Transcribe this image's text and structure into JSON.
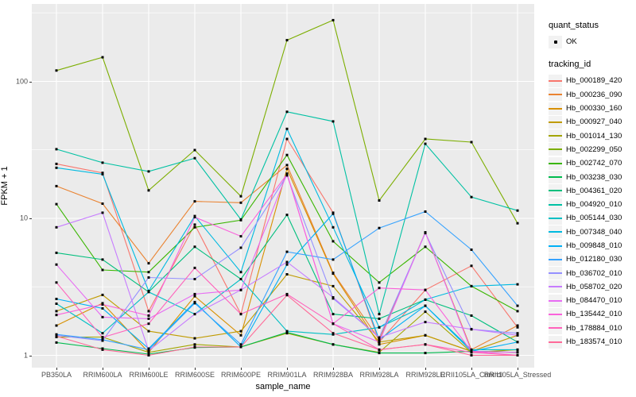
{
  "figure": {
    "x_axis_title": "sample_name",
    "y_axis_title": "FPKM + 1"
  },
  "legend": {
    "quant_status": {
      "title": "quant_status",
      "items": [
        {
          "label": "OK",
          "marker": "point-icon",
          "color": "#000000"
        }
      ]
    },
    "tracking_id": {
      "title": "tracking_id"
    }
  },
  "chart_data": {
    "type": "line",
    "title": "",
    "xlabel": "sample_name",
    "ylabel": "FPKM + 1",
    "y_scale": "log10",
    "ylim": [
      1,
      400
    ],
    "y_major_ticks": [
      1,
      10,
      100
    ],
    "y_minor_ticks": [
      3.1623,
      31.623,
      316.23
    ],
    "grid": "on",
    "legend_position": "right",
    "panel_bg": "#EBEBEB",
    "grid_color": "#FFFFFF",
    "point_color": "#000000",
    "categories": [
      "PB350LA",
      "RRIM600LA",
      "RRIM600LE",
      "RRIM600SE",
      "RRIM600PE",
      "RRIM901LA",
      "RRIM928BA",
      "RRIM928LA",
      "RRIM928LE",
      "RRII105LA_Control",
      "RRII105LA_Stressed"
    ],
    "series": [
      {
        "name": "Hb_000189_420",
        "color": "#F8766D",
        "values": [
          25,
          21.5,
          2.1,
          9.0,
          2.0,
          38,
          11,
          1.25,
          3.0,
          4.5,
          1.6
        ]
      },
      {
        "name": "Hb_000236_090",
        "color": "#EA8331",
        "values": [
          17.2,
          12.8,
          4.7,
          13.3,
          13.0,
          24.5,
          4.0,
          1.3,
          7.9,
          1.1,
          1.65
        ]
      },
      {
        "name": "Hb_000330_160",
        "color": "#D89000",
        "values": [
          1.65,
          2.4,
          1.05,
          2.7,
          1.4,
          23.0,
          3.95,
          1.2,
          1.4,
          1.07,
          1.05
        ]
      },
      {
        "name": "Hb_000927_040",
        "color": "#C09B00",
        "values": [
          2.1,
          2.76,
          1.5,
          1.33,
          1.5,
          3.9,
          3.2,
          1.25,
          1.4,
          1.07,
          1.4
        ]
      },
      {
        "name": "Hb_001014_130",
        "color": "#A3A500",
        "values": [
          1.36,
          1.36,
          1.05,
          1.2,
          1.15,
          1.45,
          1.2,
          1.05,
          2.08,
          1.05,
          1.1
        ]
      },
      {
        "name": "Hb_002299_050",
        "color": "#7CAE00",
        "values": [
          120,
          150,
          16,
          31.5,
          14.5,
          200,
          280,
          13.5,
          38,
          36,
          9.2
        ]
      },
      {
        "name": "Hb_002742_070",
        "color": "#39B600",
        "values": [
          12.7,
          4.2,
          4.05,
          8.6,
          9.7,
          29,
          6.8,
          3.4,
          6.2,
          3.2,
          2.1
        ]
      },
      {
        "name": "Hb_003238_030",
        "color": "#00BB4E",
        "values": [
          1.24,
          1.12,
          1.02,
          1.14,
          1.15,
          1.47,
          1.2,
          1.04,
          1.04,
          1.07,
          1.05
        ]
      },
      {
        "name": "Hb_004361_020",
        "color": "#00BF7D",
        "values": [
          5.6,
          5.0,
          2.9,
          6.2,
          3.6,
          10.6,
          2.0,
          1.85,
          2.55,
          1.95,
          1.25
        ]
      },
      {
        "name": "Hb_004920_010",
        "color": "#00C1A3",
        "values": [
          32,
          25.5,
          22,
          27.5,
          9.8,
          60,
          51,
          2.0,
          35,
          14.3,
          11.4
        ]
      },
      {
        "name": "Hb_005144_030",
        "color": "#00BFC4",
        "values": [
          2.38,
          1.45,
          2.9,
          2.0,
          3.6,
          1.5,
          1.42,
          1.6,
          2.3,
          1.1,
          1.1
        ]
      },
      {
        "name": "Hb_007348_040",
        "color": "#00BAE0",
        "values": [
          23.4,
          21.0,
          2.95,
          10.4,
          4.05,
          45,
          8.6,
          1.6,
          2.55,
          3.2,
          3.3
        ]
      },
      {
        "name": "Hb_009848_010",
        "color": "#00B0F6",
        "values": [
          2.58,
          2.2,
          1.12,
          2.45,
          1.15,
          4.6,
          10.8,
          1.3,
          2.3,
          1.07,
          1.25
        ]
      },
      {
        "name": "Hb_012180_030",
        "color": "#35A2FF",
        "values": [
          1.42,
          1.3,
          1.1,
          2.4,
          1.2,
          5.7,
          5.0,
          8.5,
          11.2,
          5.9,
          2.3
        ]
      },
      {
        "name": "Hb_036702_010",
        "color": "#9590FF",
        "values": [
          1.4,
          1.28,
          3.7,
          3.6,
          6.1,
          20.6,
          2.6,
          1.35,
          7.8,
          1.55,
          1.45
        ]
      },
      {
        "name": "Hb_058702_020",
        "color": "#C77CFF",
        "values": [
          8.6,
          11.0,
          1.08,
          2.0,
          3.0,
          4.8,
          2.65,
          1.35,
          1.75,
          1.55,
          1.4
        ]
      },
      {
        "name": "Hb_084470_010",
        "color": "#E76BF3",
        "values": [
          4.6,
          1.9,
          1.85,
          2.8,
          3.0,
          21.2,
          1.7,
          1.25,
          7.9,
          1.07,
          1.05
        ]
      },
      {
        "name": "Hb_135442_010",
        "color": "#FA62DB",
        "values": [
          1.97,
          2.35,
          1.95,
          10.2,
          7.4,
          21.0,
          1.7,
          3.1,
          3.0,
          1.07,
          1.0
        ]
      },
      {
        "name": "Hb_178884_010",
        "color": "#FF62BC",
        "values": [
          3.4,
          1.35,
          1.7,
          4.35,
          2.0,
          2.8,
          1.7,
          1.1,
          1.2,
          1.05,
          1.0
        ]
      },
      {
        "name": "Hb_183574_010",
        "color": "#FF6A98",
        "values": [
          1.38,
          1.1,
          1.0,
          1.15,
          1.15,
          2.75,
          1.45,
          1.1,
          1.2,
          1.0,
          1.0
        ]
      }
    ]
  }
}
